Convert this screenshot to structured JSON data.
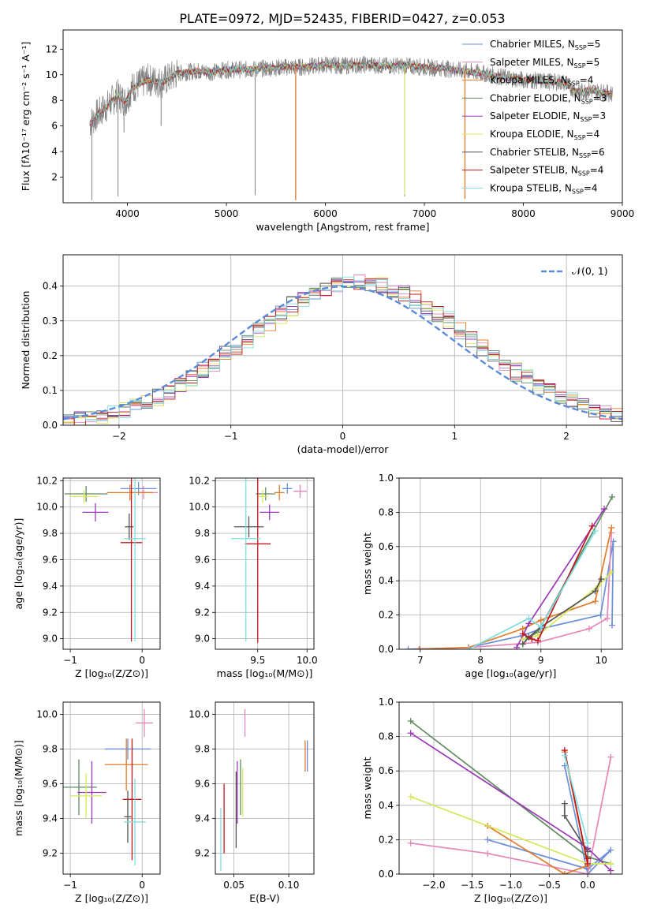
{
  "figure_title": "PLATE=0972, MJD=52435, FIBERID=0427, z=0.053",
  "colors": {
    "grid": "#b0b0b0",
    "gauss": "#5b8bd8"
  },
  "models": [
    {
      "name": "Chabrier MILES, N$_{SSP}$=5",
      "label_main": "Chabrier MILES, N",
      "label_sub": "SSP",
      "label_tail": "=5",
      "color": "#6a8fd8"
    },
    {
      "name": "Salpeter MILES, N$_{SSP}$=5",
      "label_main": "Salpeter MILES, N",
      "label_sub": "SSP",
      "label_tail": "=5",
      "color": "#e586b8"
    },
    {
      "name": "Kroupa MILES, N$_{SSP}$=4",
      "label_main": "Kroupa MILES, N",
      "label_sub": "SSP",
      "label_tail": "=4",
      "color": "#e07b2a"
    },
    {
      "name": "Chabrier ELODIE, N$_{SSP}$=3",
      "label_main": "Chabrier ELODIE, N",
      "label_sub": "SSP",
      "label_tail": "=3",
      "color": "#5f8a5f"
    },
    {
      "name": "Salpeter ELODIE, N$_{SSP}$=3",
      "label_main": "Salpeter ELODIE, N",
      "label_sub": "SSP",
      "label_tail": "=3",
      "color": "#9b38b8"
    },
    {
      "name": "Kroupa ELODIE, N$_{SSP}$=4",
      "label_main": "Kroupa ELODIE, N",
      "label_sub": "SSP",
      "label_tail": "=4",
      "color": "#d6e85a"
    },
    {
      "name": "Chabrier STELIB, N$_{SSP}$=6",
      "label_main": "Chabrier STELIB, N",
      "label_sub": "SSP",
      "label_tail": "=6",
      "color": "#555555"
    },
    {
      "name": "Salpeter STELIB, N$_{SSP}$=4",
      "label_main": "Salpeter STELIB, N",
      "label_sub": "SSP",
      "label_tail": "=4",
      "color": "#c0161c"
    },
    {
      "name": "Kroupa STELIB, N$_{SSP}$=4",
      "label_main": "Kroupa STELIB, N",
      "label_sub": "SSP",
      "label_tail": "=4",
      "color": "#7fdede"
    }
  ],
  "chart_data": [
    {
      "id": "spectrum",
      "type": "line",
      "xlabel": "wavelength [Angstrom, rest frame]",
      "ylabel": "Flux [f$_\\lambda$10$^{-17}$ erg cm$^{-2}$ s$^{-1}$ A$^{-1}$]",
      "ylabel_display": "Flux [fλ10⁻¹⁷ erg cm⁻² s⁻¹ A⁻¹]",
      "xlim": [
        3350,
        9000
      ],
      "ylim": [
        0,
        13.5
      ],
      "xticks": [
        4000,
        5000,
        6000,
        7000,
        8000,
        9000
      ],
      "yticks": [
        2,
        4,
        6,
        8,
        10,
        12
      ],
      "data_color": "#808080",
      "continuum": [
        [
          3620,
          6.2
        ],
        [
          3700,
          6.9
        ],
        [
          3800,
          7.6
        ],
        [
          3900,
          8.4
        ],
        [
          3980,
          7.9
        ],
        [
          4050,
          9.0
        ],
        [
          4200,
          9.6
        ],
        [
          4350,
          9.4
        ],
        [
          4500,
          10.1
        ],
        [
          4700,
          10.3
        ],
        [
          4860,
          10.2
        ],
        [
          5000,
          10.4
        ],
        [
          5200,
          10.4
        ],
        [
          5400,
          10.5
        ],
        [
          5600,
          10.6
        ],
        [
          5800,
          10.6
        ],
        [
          6000,
          10.8
        ],
        [
          6200,
          10.7
        ],
        [
          6400,
          10.8
        ],
        [
          6600,
          10.7
        ],
        [
          6800,
          10.7
        ],
        [
          7000,
          10.6
        ],
        [
          7200,
          10.5
        ],
        [
          7400,
          10.3
        ],
        [
          7600,
          10.1
        ],
        [
          7800,
          9.8
        ],
        [
          8000,
          9.6
        ],
        [
          8200,
          9.5
        ],
        [
          8400,
          9.4
        ],
        [
          8500,
          8.9
        ],
        [
          8540,
          8.7
        ],
        [
          8600,
          8.7
        ],
        [
          8660,
          8.8
        ],
        [
          8750,
          8.7
        ],
        [
          8900,
          8.5
        ]
      ],
      "spikes": [
        [
          3640,
          0.2
        ],
        [
          3905,
          0.5
        ],
        [
          3965,
          5.5
        ],
        [
          4340,
          6.0
        ],
        [
          5290,
          0.6
        ],
        [
          5700,
          0.2
        ],
        [
          6800,
          0.5
        ],
        [
          7410,
          0.3
        ]
      ],
      "legend_position": "top-right"
    },
    {
      "id": "residuals",
      "type": "step",
      "xlabel": "(data-model)/error",
      "ylabel": "Normed distribution",
      "xlim": [
        -2.5,
        2.5
      ],
      "ylim": [
        0,
        0.49
      ],
      "xticks": [
        -2,
        -1,
        0,
        1,
        2
      ],
      "yticks": [
        0.0,
        0.1,
        0.2,
        0.3,
        0.4
      ],
      "legend": "$\\mathcal{N}(0,1)$",
      "legend_display": "𝒩(0, 1)",
      "legend_position": "top-right",
      "bin_width": 0.1
    },
    {
      "id": "age_vs_Z",
      "type": "errorbar",
      "xlabel": "Z [log$_{10}$(Z/Z$_\\odot$)]",
      "xlabel_display": "Z [log₁₀(Z/Z⊙)]",
      "ylabel": "age  [log$_{10}$(age/yr)]",
      "ylabel_display": "age  [log₁₀(age/yr)]",
      "xlim": [
        -1.1,
        0.25
      ],
      "ylim": [
        8.92,
        10.22
      ],
      "xticks": [
        -1,
        0
      ],
      "yticks": [
        9.0,
        9.2,
        9.4,
        9.6,
        9.8,
        10.0,
        10.2
      ],
      "points": [
        {
          "x": -0.05,
          "xerr": 0.25,
          "y": 10.14,
          "yerr": 0.05
        },
        {
          "x": 0.02,
          "xerr": 0.2,
          "y": 10.11,
          "yerr": 0.05
        },
        {
          "x": -0.17,
          "xerr": 0.32,
          "y": 10.11,
          "yerr": 0.06
        },
        {
          "x": -0.78,
          "xerr": 0.3,
          "y": 10.1,
          "yerr": 0.06
        },
        {
          "x": -0.65,
          "xerr": 0.18,
          "y": 9.96,
          "yerr": 0.07
        },
        {
          "x": -0.81,
          "xerr": 0.2,
          "y": 10.08,
          "yerr": 0.05
        },
        {
          "x": -0.18,
          "xerr": 0.06,
          "y": 9.85,
          "yerr": 0.1
        },
        {
          "x": -0.15,
          "xerr": 0.15,
          "y": 9.73,
          "yerr": 0.75
        },
        {
          "x": -0.1,
          "xerr": 0.15,
          "y": 9.76,
          "yerr": 0.78
        }
      ]
    },
    {
      "id": "age_vs_mass",
      "type": "errorbar",
      "xlabel": "mass [log$_{10}$(M/M$_\\odot$)]",
      "xlabel_display": "mass [log₁₀(M/M⊙)]",
      "ylabel": "",
      "xlim": [
        9.07,
        10.07
      ],
      "ylim": [
        8.92,
        10.22
      ],
      "xticks": [
        9.5,
        10.0
      ],
      "yticks": [
        9.0,
        9.2,
        9.4,
        9.6,
        9.8,
        10.0,
        10.2
      ],
      "points": [
        {
          "x": 9.8,
          "xerr": 0.05,
          "y": 10.14,
          "yerr": 0.04
        },
        {
          "x": 9.93,
          "xerr": 0.07,
          "y": 10.12,
          "yerr": 0.05
        },
        {
          "x": 9.72,
          "xerr": 0.05,
          "y": 10.11,
          "yerr": 0.06
        },
        {
          "x": 9.58,
          "xerr": 0.1,
          "y": 10.1,
          "yerr": 0.05
        },
        {
          "x": 9.62,
          "xerr": 0.1,
          "y": 9.96,
          "yerr": 0.06
        },
        {
          "x": 9.55,
          "xerr": 0.05,
          "y": 10.08,
          "yerr": 0.05
        },
        {
          "x": 9.41,
          "xerr": 0.15,
          "y": 9.85,
          "yerr": 0.08
        },
        {
          "x": 9.5,
          "xerr": 0.13,
          "y": 9.72,
          "yerr": 0.75
        },
        {
          "x": 9.38,
          "xerr": 0.15,
          "y": 9.76,
          "yerr": 0.78
        }
      ]
    },
    {
      "id": "massweight_vs_age",
      "type": "line",
      "xlabel": "age  [log$_{10}$(age/yr)]",
      "xlabel_display": "age  [log₁₀(age/yr)]",
      "ylabel": "mass weight",
      "xlim": [
        6.65,
        10.35
      ],
      "ylim": [
        0,
        1.0
      ],
      "xticks": [
        7,
        8,
        9,
        10
      ],
      "yticks": [
        0.0,
        0.2,
        0.4,
        0.6,
        0.8,
        1.0
      ],
      "series": [
        {
          "x": [
            6.8,
            7.8,
            8.7,
            9.0,
            9.99,
            10.2,
            10.18
          ],
          "y": [
            0.0,
            0.01,
            0.08,
            0.12,
            0.2,
            0.63,
            0.14
          ]
        },
        {
          "x": [
            7.0,
            7.8,
            8.95,
            9.8,
            10.1,
            10.17
          ],
          "y": [
            0.0,
            0.01,
            0.04,
            0.12,
            0.18,
            0.68
          ]
        },
        {
          "x": [
            6.98,
            7.8,
            8.7,
            9.0,
            9.9,
            10.17
          ],
          "y": [
            0.0,
            0.01,
            0.12,
            0.17,
            0.28,
            0.71
          ]
        },
        {
          "x": [
            8.75,
            8.95,
            10.18
          ],
          "y": [
            0.06,
            0.1,
            0.89
          ]
        },
        {
          "x": [
            8.6,
            8.8,
            10.05
          ],
          "y": [
            0.01,
            0.15,
            0.82
          ]
        },
        {
          "x": [
            8.7,
            8.95,
            9.95,
            10.17
          ],
          "y": [
            0.06,
            0.08,
            0.37,
            0.45
          ]
        },
        {
          "x": [
            8.7,
            8.8,
            9.0,
            9.9,
            10.0
          ],
          "y": [
            0.03,
            0.07,
            0.13,
            0.34,
            0.41
          ]
        },
        {
          "x": [
            8.7,
            8.85,
            8.95,
            9.85
          ],
          "y": [
            0.09,
            0.06,
            0.05,
            0.72
          ]
        },
        {
          "x": [
            7.8,
            8.8,
            9.0,
            9.9
          ],
          "y": [
            0.0,
            0.18,
            0.13,
            0.69
          ]
        }
      ]
    },
    {
      "id": "mass_vs_Z",
      "type": "errorbar",
      "xlabel": "Z [log$_{10}$(Z/Z$_\\odot$)]",
      "xlabel_display": "Z [log₁₀(Z/Z⊙)]",
      "ylabel": "mass [log$_{10}$(M/M$_\\odot$)]",
      "ylabel_display": "mass [log₁₀(M/M⊙)]",
      "xlim": [
        -1.1,
        0.25
      ],
      "ylim": [
        9.08,
        10.07
      ],
      "xticks": [
        -1,
        0
      ],
      "yticks": [
        9.2,
        9.4,
        9.6,
        9.8,
        10.0
      ],
      "points": [
        {
          "x": -0.2,
          "xerr": 0.32,
          "y": 9.8,
          "yerr": 0.06
        },
        {
          "x": 0.03,
          "xerr": 0.12,
          "y": 9.95,
          "yerr": 0.08
        },
        {
          "x": -0.22,
          "xerr": 0.3,
          "y": 9.71,
          "yerr": 0.15
        },
        {
          "x": -0.88,
          "xerr": 0.25,
          "y": 9.58,
          "yerr": 0.16
        },
        {
          "x": -0.7,
          "xerr": 0.2,
          "y": 9.55,
          "yerr": 0.18
        },
        {
          "x": -0.78,
          "xerr": 0.22,
          "y": 9.53,
          "yerr": 0.13
        },
        {
          "x": -0.2,
          "xerr": 0.05,
          "y": 9.41,
          "yerr": 0.15
        },
        {
          "x": -0.14,
          "xerr": 0.13,
          "y": 9.51,
          "yerr": 0.35
        },
        {
          "x": -0.1,
          "xerr": 0.15,
          "y": 9.38,
          "yerr": 0.25
        }
      ]
    },
    {
      "id": "mass_vs_ebv",
      "type": "errorbar",
      "xlabel": "E(B-V)",
      "ylabel": "",
      "xlim": [
        0.033,
        0.123
      ],
      "ylim": [
        9.08,
        10.07
      ],
      "xticks": [
        0.05,
        0.1
      ],
      "yticks": [
        9.2,
        9.4,
        9.6,
        9.8,
        10.0
      ],
      "points": [
        {
          "x": 0.117,
          "y": 9.76,
          "yerr": 0.09
        },
        {
          "x": 0.06,
          "y": 9.95,
          "yerr": 0.08
        },
        {
          "x": 0.115,
          "y": 9.76,
          "yerr": 0.09
        },
        {
          "x": 0.056,
          "y": 9.58,
          "yerr": 0.16
        },
        {
          "x": 0.053,
          "y": 9.55,
          "yerr": 0.18
        },
        {
          "x": 0.058,
          "y": 9.55,
          "yerr": 0.14
        },
        {
          "x": 0.052,
          "y": 9.45,
          "yerr": 0.22
        },
        {
          "x": 0.041,
          "y": 9.4,
          "yerr": 0.2
        },
        {
          "x": 0.038,
          "y": 9.28,
          "yerr": 0.18
        }
      ]
    },
    {
      "id": "massweight_vs_Z",
      "type": "line",
      "xlabel": "Z [log$_{10}$(Z/Z$_\\odot$)]",
      "xlabel_display": "Z [log₁₀(Z/Z⊙)]",
      "ylabel": "mass weight",
      "xlim": [
        -2.45,
        0.45
      ],
      "ylim": [
        0,
        1.0
      ],
      "xticks": [
        -2.0,
        -1.5,
        -1.0,
        -0.5,
        0.0
      ],
      "yticks": [
        0.0,
        0.2,
        0.4,
        0.6,
        0.8,
        1.0
      ],
      "series": [
        {
          "x": [
            -1.3,
            0.0,
            0.3,
            0.0,
            -0.3
          ],
          "y": [
            0.2,
            0.03,
            0.14,
            0.0,
            0.63
          ]
        },
        {
          "x": [
            -2.3,
            -1.3,
            0.0,
            0.3
          ],
          "y": [
            0.18,
            0.12,
            0.0,
            0.68
          ]
        },
        {
          "x": [
            -1.3,
            -0.3,
            0.0,
            -0.3
          ],
          "y": [
            0.28,
            0.0,
            0.05,
            0.71
          ]
        },
        {
          "x": [
            -2.3,
            0.0,
            0.3
          ],
          "y": [
            0.89,
            0.1,
            0.06
          ]
        },
        {
          "x": [
            -2.3,
            0.0,
            0.3
          ],
          "y": [
            0.82,
            0.15,
            0.02
          ]
        },
        {
          "x": [
            -2.3,
            0.0,
            0.3
          ],
          "y": [
            0.45,
            0.06,
            0.06
          ]
        },
        {
          "x": [
            -0.3,
            -0.3,
            0.0
          ],
          "y": [
            0.41,
            0.34,
            0.13
          ]
        },
        {
          "x": [
            -0.3,
            0.0,
            0.0
          ],
          "y": [
            0.72,
            0.06,
            0.09
          ]
        },
        {
          "x": [
            -0.3,
            0.0
          ],
          "y": [
            0.69,
            0.18
          ]
        }
      ]
    }
  ]
}
